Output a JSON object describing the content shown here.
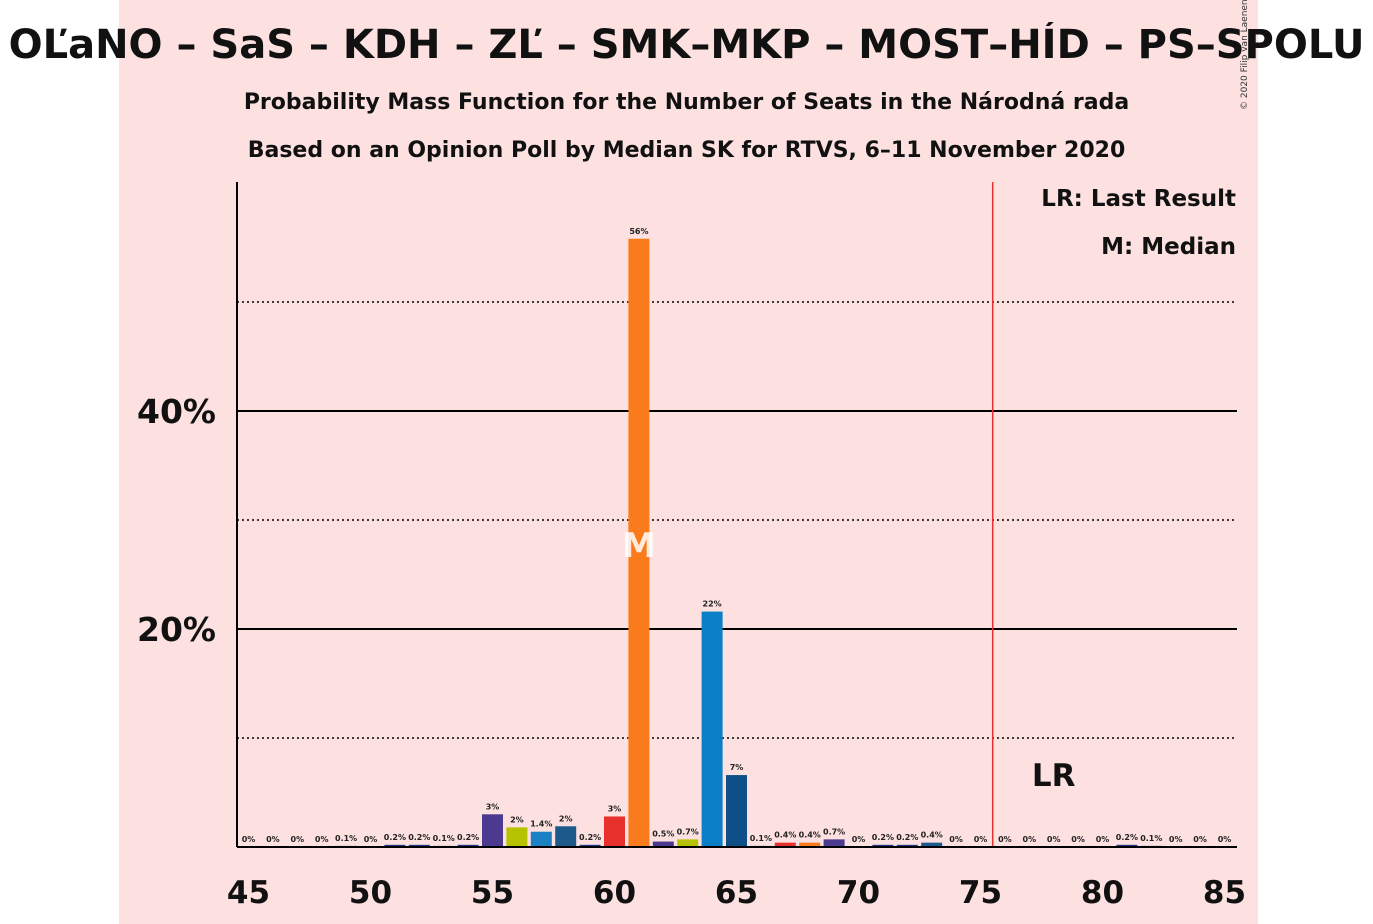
{
  "title": "OĽaNO – SaS – KDH – ZĽ – SMK–MKP – MOST–HÍD – PS–SPOLU",
  "subtitle_1": "Probability Mass Function for the Number of Seats in the Národná rada",
  "subtitle_2": "Based on an Opinion Poll by Median SK for RTVS, 6–11 November 2020",
  "copyright": "© 2020 Filip van Laenen",
  "legend": {
    "last_result": "LR: Last Result",
    "median": "M: Median"
  },
  "chart_data": {
    "type": "bar",
    "title": "OĽaNO – SaS – KDH – ZĽ – SMK–MKP – MOST–HÍD – PS–SPOLU",
    "xlabel": "",
    "ylabel": "",
    "xlim": [
      45,
      85
    ],
    "ylim": [
      0,
      60
    ],
    "y_ticks": [
      {
        "value": 20,
        "label": "20%"
      },
      {
        "value": 40,
        "label": "40%"
      }
    ],
    "x_ticks": [
      {
        "value": 45,
        "label": "45"
      },
      {
        "value": 50,
        "label": "50"
      },
      {
        "value": 55,
        "label": "55"
      },
      {
        "value": 60,
        "label": "60"
      },
      {
        "value": 65,
        "label": "65"
      },
      {
        "value": 70,
        "label": "70"
      },
      {
        "value": 75,
        "label": "75"
      },
      {
        "value": 80,
        "label": "80"
      },
      {
        "value": 85,
        "label": "85"
      }
    ],
    "grid": {
      "solid": [
        20,
        40
      ],
      "dotted": [
        10,
        30,
        50
      ]
    },
    "majority_line": 75.5,
    "median_seat": 61,
    "median_marker": "M",
    "last_result_seat": 78,
    "last_result_marker": "LR",
    "bars": [
      {
        "seats": 45,
        "value": 0,
        "label": "0%",
        "color": "#1e3a8a"
      },
      {
        "seats": 46,
        "value": 0,
        "label": "0%",
        "color": "#1e3a8a"
      },
      {
        "seats": 47,
        "value": 0,
        "label": "0%",
        "color": "#1e3a8a"
      },
      {
        "seats": 48,
        "value": 0,
        "label": "0%",
        "color": "#1e3a8a"
      },
      {
        "seats": 49,
        "value": 0.1,
        "label": "0.1%",
        "color": "#1e3a8a"
      },
      {
        "seats": 50,
        "value": 0,
        "label": "0%",
        "color": "#1e3a8a"
      },
      {
        "seats": 51,
        "value": 0.2,
        "label": "0.2%",
        "color": "#1e3a8a"
      },
      {
        "seats": 52,
        "value": 0.2,
        "label": "0.2%",
        "color": "#1e3a8a"
      },
      {
        "seats": 53,
        "value": 0.1,
        "label": "0.1%",
        "color": "#1e3a8a"
      },
      {
        "seats": 54,
        "value": 0.2,
        "label": "0.2%",
        "color": "#1e3a8a"
      },
      {
        "seats": 55,
        "value": 3,
        "label": "3%",
        "color": "#4b3a8f"
      },
      {
        "seats": 56,
        "value": 1.8,
        "label": "2%",
        "color": "#b5c300"
      },
      {
        "seats": 57,
        "value": 1.4,
        "label": "1.4%",
        "color": "#1b80c4"
      },
      {
        "seats": 58,
        "value": 1.9,
        "label": "2%",
        "color": "#1d5a8c"
      },
      {
        "seats": 59,
        "value": 0.2,
        "label": "0.2%",
        "color": "#1e3a8a"
      },
      {
        "seats": 60,
        "value": 2.8,
        "label": "3%",
        "color": "#e8312d"
      },
      {
        "seats": 61,
        "value": 55.8,
        "label": "56%",
        "color": "#f97b1b"
      },
      {
        "seats": 62,
        "value": 0.5,
        "label": "0.5%",
        "color": "#4b3a8f"
      },
      {
        "seats": 63,
        "value": 0.7,
        "label": "0.7%",
        "color": "#b5c300"
      },
      {
        "seats": 64,
        "value": 21.6,
        "label": "22%",
        "color": "#0a7fc7"
      },
      {
        "seats": 65,
        "value": 6.6,
        "label": "7%",
        "color": "#0d4f86"
      },
      {
        "seats": 66,
        "value": 0.1,
        "label": "0.1%",
        "color": "#1e3a8a"
      },
      {
        "seats": 67,
        "value": 0.4,
        "label": "0.4%",
        "color": "#e8312d"
      },
      {
        "seats": 68,
        "value": 0.4,
        "label": "0.4%",
        "color": "#f97b1b"
      },
      {
        "seats": 69,
        "value": 0.7,
        "label": "0.7%",
        "color": "#4b3a8f"
      },
      {
        "seats": 70,
        "value": 0,
        "label": "0%",
        "color": "#1e3a8a"
      },
      {
        "seats": 71,
        "value": 0.2,
        "label": "0.2%",
        "color": "#1e3a8a"
      },
      {
        "seats": 72,
        "value": 0.2,
        "label": "0.2%",
        "color": "#1e3a8a"
      },
      {
        "seats": 73,
        "value": 0.4,
        "label": "0.4%",
        "color": "#1d5a8c"
      },
      {
        "seats": 74,
        "value": 0,
        "label": "0%",
        "color": "#1e3a8a"
      },
      {
        "seats": 75,
        "value": 0,
        "label": "0%",
        "color": "#1e3a8a"
      },
      {
        "seats": 76,
        "value": 0,
        "label": "0%",
        "color": "#1e3a8a"
      },
      {
        "seats": 77,
        "value": 0,
        "label": "0%",
        "color": "#1e3a8a"
      },
      {
        "seats": 78,
        "value": 0,
        "label": "0%",
        "color": "#1e3a8a"
      },
      {
        "seats": 79,
        "value": 0,
        "label": "0%",
        "color": "#1e3a8a"
      },
      {
        "seats": 80,
        "value": 0,
        "label": "0%",
        "color": "#1e3a8a"
      },
      {
        "seats": 81,
        "value": 0.2,
        "label": "0.2%",
        "color": "#1e3a8a"
      },
      {
        "seats": 82,
        "value": 0.1,
        "label": "0.1%",
        "color": "#1e3a8a"
      },
      {
        "seats": 83,
        "value": 0,
        "label": "0%",
        "color": "#1e3a8a"
      },
      {
        "seats": 84,
        "value": 0,
        "label": "0%",
        "color": "#1e3a8a"
      },
      {
        "seats": 85,
        "value": 0,
        "label": "0%",
        "color": "#1e3a8a"
      }
    ],
    "colors": {
      "background_band": "#fde0e0",
      "majority_line": "#e8312d",
      "axis": "#000000"
    }
  }
}
